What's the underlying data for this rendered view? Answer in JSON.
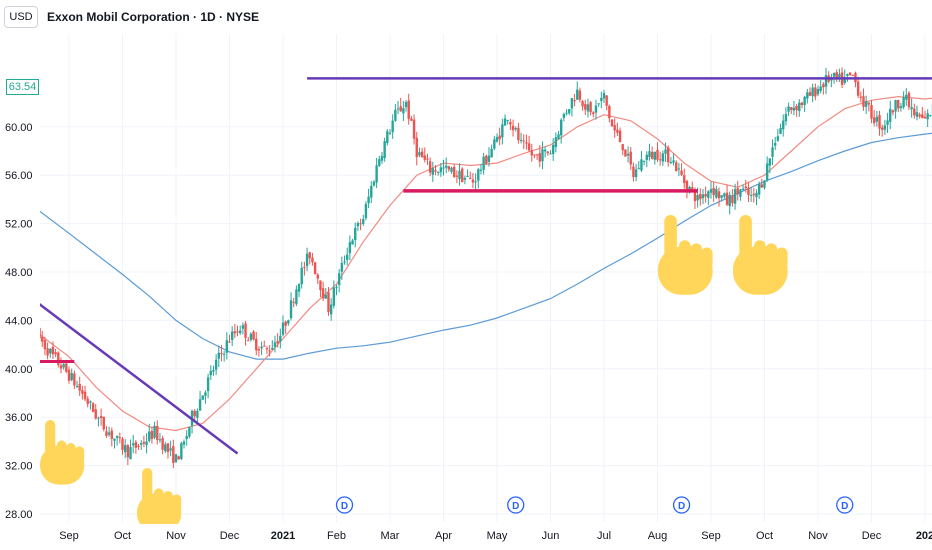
{
  "toolbar": {
    "currency_label": "USD"
  },
  "header": {
    "title": "Exxon Mobil Corporation · 1D · NYSE"
  },
  "price_tag": "63.54",
  "chart_data": {
    "type": "candlestick",
    "title": "Exxon Mobil Corporation · 1D · NYSE",
    "currency": "USD",
    "y_ticks": [
      "28.00",
      "32.00",
      "36.00",
      "40.00",
      "44.00",
      "48.00",
      "52.00",
      "56.00",
      "60.00"
    ],
    "y_range": [
      27.5,
      64.8
    ],
    "x_months": [
      {
        "label": "Sep",
        "m": 0
      },
      {
        "label": "Oct",
        "m": 1
      },
      {
        "label": "Nov",
        "m": 2
      },
      {
        "label": "Dec",
        "m": 3
      },
      {
        "label": "2021",
        "m": 4,
        "bold": true
      },
      {
        "label": "Feb",
        "m": 5
      },
      {
        "label": "Mar",
        "m": 6
      },
      {
        "label": "Apr",
        "m": 7
      },
      {
        "label": "May",
        "m": 8
      },
      {
        "label": "Jun",
        "m": 9
      },
      {
        "label": "Jul",
        "m": 10
      },
      {
        "label": "Aug",
        "m": 11
      },
      {
        "label": "Sep",
        "m": 12
      },
      {
        "label": "Oct",
        "m": 13
      },
      {
        "label": "Nov",
        "m": 14
      },
      {
        "label": "Dec",
        "m": 15
      },
      {
        "label": "202",
        "m": 16,
        "bold": true
      }
    ],
    "price_path": [
      [
        -0.6,
        42.8
      ],
      [
        -0.3,
        41.0
      ],
      [
        0.0,
        39.5
      ],
      [
        0.3,
        37.6
      ],
      [
        0.6,
        35.5
      ],
      [
        0.9,
        34.0
      ],
      [
        1.1,
        33.2
      ],
      [
        1.35,
        33.8
      ],
      [
        1.6,
        34.8
      ],
      [
        1.85,
        33.2
      ],
      [
        2.0,
        32.5
      ],
      [
        2.15,
        33.8
      ],
      [
        2.3,
        36.0
      ],
      [
        2.5,
        38.0
      ],
      [
        2.75,
        40.5
      ],
      [
        3.0,
        42.5
      ],
      [
        3.2,
        43.5
      ],
      [
        3.45,
        42.2
      ],
      [
        3.7,
        41.5
      ],
      [
        3.95,
        42.8
      ],
      [
        4.1,
        44.5
      ],
      [
        4.3,
        47.5
      ],
      [
        4.5,
        49.5
      ],
      [
        4.7,
        47.0
      ],
      [
        4.85,
        45.0
      ],
      [
        5.0,
        47.0
      ],
      [
        5.25,
        50.5
      ],
      [
        5.5,
        52.5
      ],
      [
        5.8,
        57.5
      ],
      [
        6.1,
        61.0
      ],
      [
        6.3,
        62.0
      ],
      [
        6.5,
        58.0
      ],
      [
        6.75,
        56.5
      ],
      [
        7.0,
        56.5
      ],
      [
        7.3,
        56.0
      ],
      [
        7.55,
        55.5
      ],
      [
        7.75,
        57.0
      ],
      [
        8.0,
        59.0
      ],
      [
        8.2,
        61.0
      ],
      [
        8.45,
        58.5
      ],
      [
        8.7,
        57.5
      ],
      [
        9.0,
        58.0
      ],
      [
        9.25,
        61.0
      ],
      [
        9.5,
        63.0
      ],
      [
        9.75,
        61.0
      ],
      [
        10.0,
        62.5
      ],
      [
        10.15,
        60.0
      ],
      [
        10.35,
        58.5
      ],
      [
        10.55,
        56.0
      ],
      [
        10.75,
        57.5
      ],
      [
        11.0,
        57.8
      ],
      [
        11.25,
        57.5
      ],
      [
        11.5,
        55.5
      ],
      [
        11.75,
        54.0
      ],
      [
        12.0,
        55.0
      ],
      [
        12.3,
        53.8
      ],
      [
        12.55,
        54.8
      ],
      [
        12.8,
        54.0
      ],
      [
        13.0,
        56.0
      ],
      [
        13.2,
        59.0
      ],
      [
        13.45,
        61.5
      ],
      [
        13.7,
        62.0
      ],
      [
        13.95,
        63.0
      ],
      [
        14.2,
        64.0
      ],
      [
        14.45,
        63.8
      ],
      [
        14.65,
        64.2
      ],
      [
        14.85,
        62.0
      ],
      [
        15.0,
        61.0
      ],
      [
        15.2,
        60.0
      ],
      [
        15.4,
        61.5
      ],
      [
        15.6,
        62.5
      ],
      [
        15.8,
        61.0
      ],
      [
        16.0,
        60.5
      ],
      [
        16.15,
        61.5
      ],
      [
        16.3,
        62.0
      ],
      [
        16.4,
        63.5
      ]
    ],
    "ema_path": [
      [
        -0.6,
        43.0
      ],
      [
        0.0,
        41.0
      ],
      [
        0.5,
        38.5
      ],
      [
        1.0,
        36.5
      ],
      [
        1.5,
        35.2
      ],
      [
        2.0,
        34.9
      ],
      [
        2.5,
        35.5
      ],
      [
        3.0,
        37.5
      ],
      [
        3.5,
        40.0
      ],
      [
        4.0,
        42.5
      ],
      [
        4.5,
        45.0
      ],
      [
        5.0,
        47.0
      ],
      [
        5.5,
        50.5
      ],
      [
        6.0,
        53.5
      ],
      [
        6.5,
        56.0
      ],
      [
        7.0,
        57.0
      ],
      [
        7.5,
        56.8
      ],
      [
        8.0,
        57.0
      ],
      [
        8.5,
        57.8
      ],
      [
        9.0,
        58.5
      ],
      [
        9.5,
        60.0
      ],
      [
        10.0,
        61.0
      ],
      [
        10.5,
        60.5
      ],
      [
        11.0,
        59.0
      ],
      [
        11.5,
        57.0
      ],
      [
        12.0,
        55.5
      ],
      [
        12.5,
        55.0
      ],
      [
        13.0,
        56.0
      ],
      [
        13.5,
        58.0
      ],
      [
        14.0,
        60.0
      ],
      [
        14.5,
        61.5
      ],
      [
        15.0,
        62.2
      ],
      [
        15.5,
        62.5
      ],
      [
        16.0,
        62.3
      ],
      [
        16.4,
        62.5
      ]
    ],
    "sma200_path": [
      [
        -0.6,
        53.2
      ],
      [
        0.0,
        51.2
      ],
      [
        0.5,
        49.5
      ],
      [
        1.0,
        47.8
      ],
      [
        1.5,
        46.0
      ],
      [
        2.0,
        44.0
      ],
      [
        2.5,
        42.5
      ],
      [
        3.0,
        41.4
      ],
      [
        3.5,
        40.8
      ],
      [
        4.0,
        40.8
      ],
      [
        4.5,
        41.3
      ],
      [
        5.0,
        41.7
      ],
      [
        5.5,
        41.9
      ],
      [
        6.0,
        42.2
      ],
      [
        6.5,
        42.7
      ],
      [
        7.0,
        43.2
      ],
      [
        7.5,
        43.6
      ],
      [
        8.0,
        44.2
      ],
      [
        8.5,
        45.0
      ],
      [
        9.0,
        45.8
      ],
      [
        9.5,
        47.0
      ],
      [
        10.0,
        48.3
      ],
      [
        10.5,
        49.5
      ],
      [
        11.0,
        50.8
      ],
      [
        11.5,
        52.2
      ],
      [
        12.0,
        53.5
      ],
      [
        12.5,
        54.5
      ],
      [
        13.0,
        55.5
      ],
      [
        13.5,
        56.3
      ],
      [
        14.0,
        57.2
      ],
      [
        14.5,
        58.0
      ],
      [
        15.0,
        58.7
      ],
      [
        15.5,
        59.1
      ],
      [
        16.0,
        59.4
      ],
      [
        16.4,
        59.6
      ]
    ],
    "annotations": {
      "purple_top_line": {
        "y": 64.0,
        "m_start": 4.45,
        "m_end": 16.5,
        "color": "#673ab7"
      },
      "purple_trend_line": {
        "from": [
          -0.6,
          45.5
        ],
        "to": [
          3.15,
          33.0
        ],
        "color": "#673ab7"
      },
      "red_support_short": {
        "y": 40.6,
        "m_start": -0.6,
        "m_end": 0.1,
        "color": "#d81b60"
      },
      "red_support_long": {
        "y": 54.7,
        "m_start": 6.25,
        "m_end": 11.75,
        "color": "#d81b60"
      }
    },
    "dividend_markers": [
      {
        "label": "D",
        "m": 5.15
      },
      {
        "label": "D",
        "m": 8.35
      },
      {
        "label": "D",
        "m": 11.45
      },
      {
        "label": "D",
        "m": 14.5
      }
    ],
    "colors": {
      "up": "#26a69a",
      "down": "#ef5350",
      "ema": "#f28b82",
      "sma200": "#5b9bd5",
      "hand": "#ffd55a"
    }
  }
}
